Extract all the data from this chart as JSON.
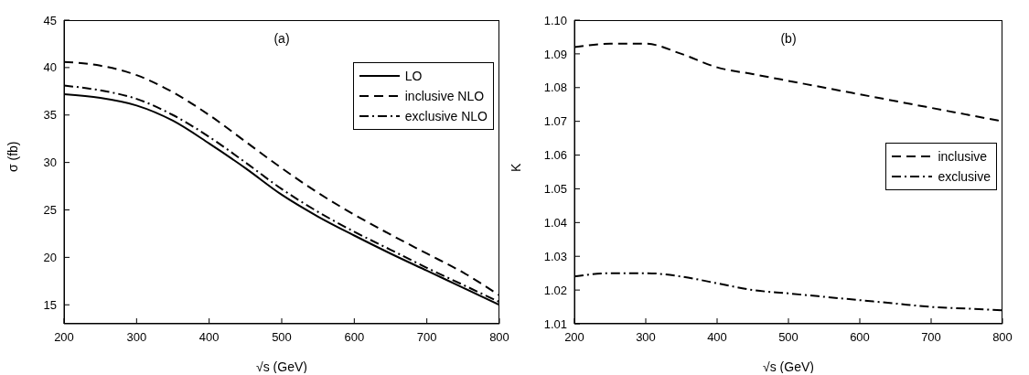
{
  "chart_data": [
    {
      "type": "line",
      "annotations": [
        "(a)"
      ],
      "xlabel": "√s (GeV)",
      "ylabel": "σ (fb)",
      "x": [
        200,
        250,
        300,
        350,
        400,
        450,
        500,
        550,
        600,
        650,
        700,
        750,
        800
      ],
      "series": [
        {
          "name": "LO",
          "color": "#000000",
          "line_style": "solid",
          "values": [
            37.2,
            36.8,
            36.0,
            34.4,
            32.0,
            29.4,
            26.6,
            24.3,
            22.3,
            20.4,
            18.6,
            16.8,
            15.0
          ]
        },
        {
          "name": "inclusive NLO",
          "color": "#000000",
          "line_style": "dashed",
          "values": [
            40.6,
            40.2,
            39.2,
            37.4,
            35.0,
            32.2,
            29.4,
            26.8,
            24.5,
            22.4,
            20.4,
            18.4,
            16.0
          ]
        },
        {
          "name": "exclusive NLO",
          "color": "#000000",
          "line_style": "dashdot",
          "values": [
            38.1,
            37.6,
            36.7,
            35.0,
            32.7,
            30.0,
            27.2,
            24.8,
            22.7,
            20.8,
            18.9,
            17.1,
            15.3
          ]
        }
      ],
      "xlim": [
        200,
        800
      ],
      "xticks": [
        200,
        300,
        400,
        500,
        600,
        700,
        800
      ],
      "ylim": [
        13,
        45
      ],
      "yticks": [
        15,
        20,
        25,
        30,
        35,
        40,
        45
      ],
      "legend": "top right",
      "marker": "none",
      "grid": false
    },
    {
      "type": "line",
      "annotations": [
        "(b)"
      ],
      "xlabel": "√s (GeV)",
      "ylabel": "K",
      "x": [
        200,
        250,
        300,
        350,
        400,
        450,
        500,
        550,
        600,
        650,
        700,
        750,
        800
      ],
      "series": [
        {
          "name": "inclusive",
          "color": "#000000",
          "line_style": "dashed",
          "values": [
            1.092,
            1.093,
            1.093,
            1.09,
            1.086,
            1.084,
            1.082,
            1.08,
            1.078,
            1.076,
            1.074,
            1.072,
            1.07
          ]
        },
        {
          "name": "exclusive",
          "color": "#000000",
          "line_style": "dashdot",
          "values": [
            1.024,
            1.025,
            1.025,
            1.024,
            1.022,
            1.02,
            1.019,
            1.018,
            1.017,
            1.016,
            1.015,
            1.0145,
            1.014
          ]
        }
      ],
      "xlim": [
        200,
        800
      ],
      "xticks": [
        200,
        300,
        400,
        500,
        600,
        700,
        800
      ],
      "ylim": [
        1.01,
        1.1
      ],
      "yticks": [
        1.01,
        1.02,
        1.03,
        1.04,
        1.05,
        1.06,
        1.07,
        1.08,
        1.09,
        {
          "value": 1.1,
          "label": "1.10"
        }
      ],
      "legend": "right",
      "marker": "none",
      "grid": false
    }
  ]
}
